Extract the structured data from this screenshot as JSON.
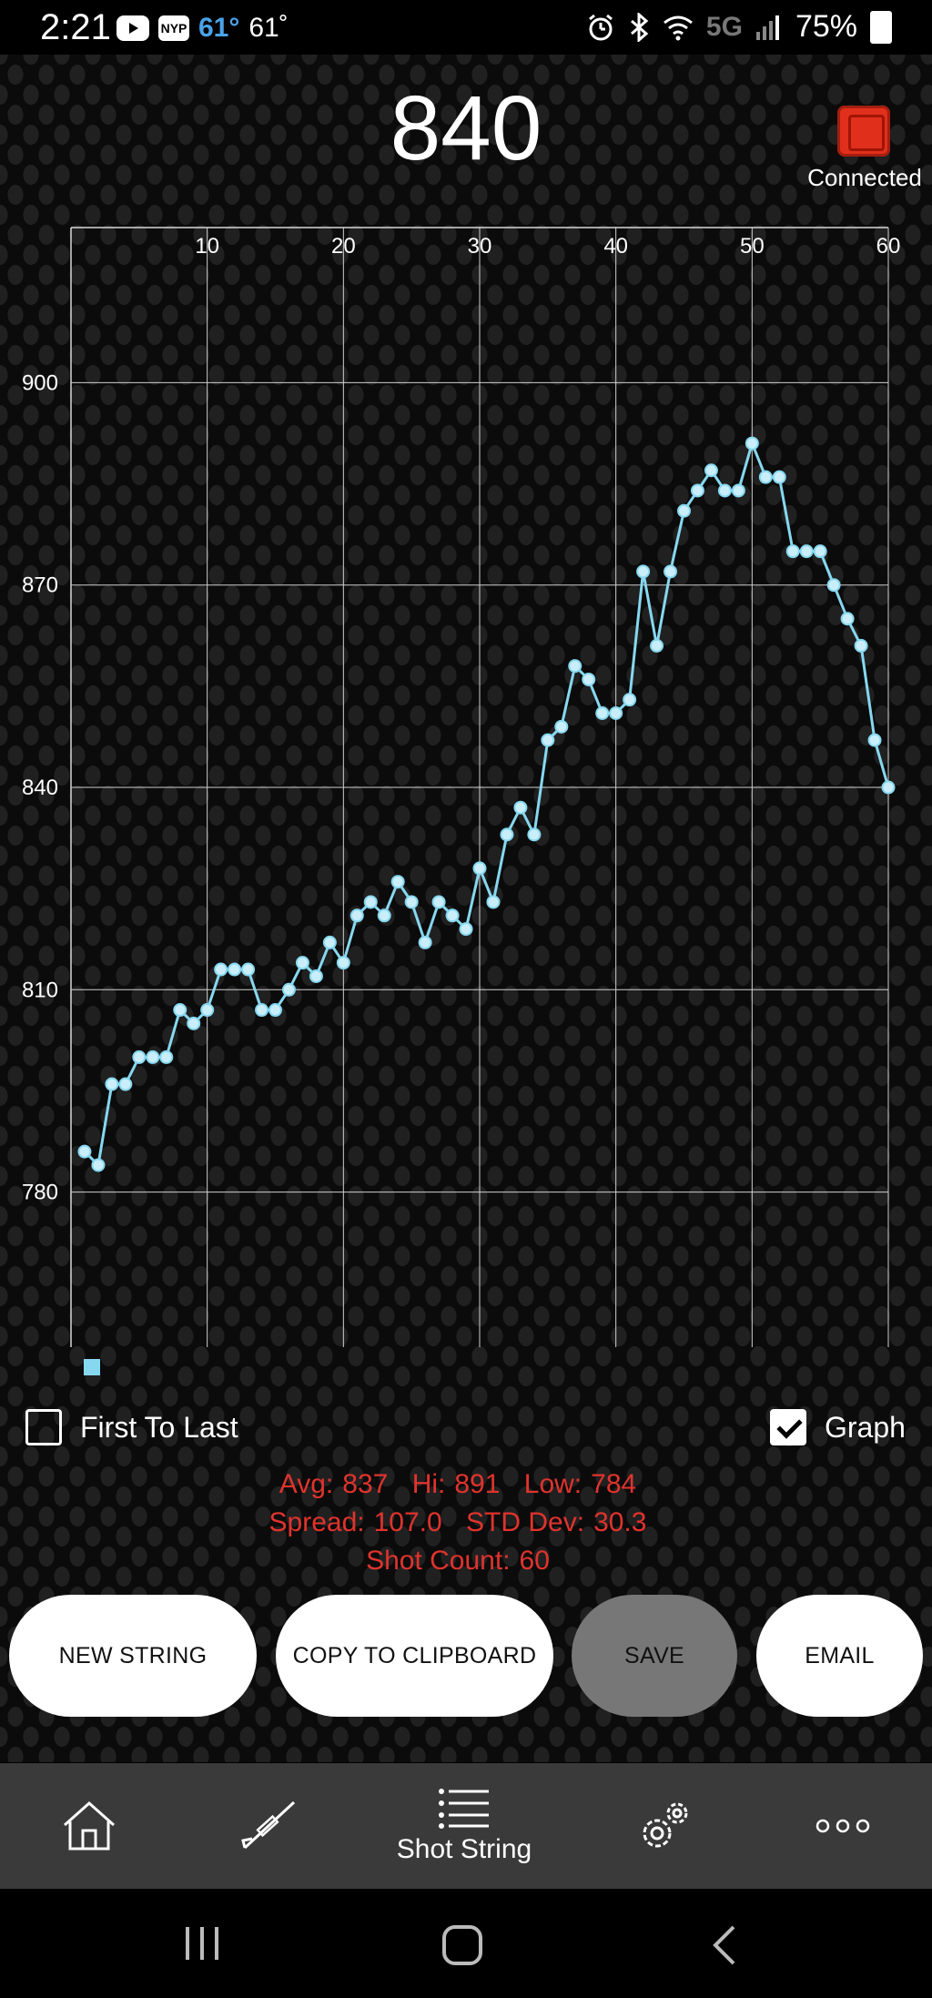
{
  "status_bar": {
    "time": "2:21",
    "temp_primary": "61°",
    "temp_secondary": "61˚",
    "network": "5G",
    "battery": "75%",
    "nyp_label": "NYP"
  },
  "header": {
    "current_velocity": "840",
    "device_status": "Connected"
  },
  "chart_data": {
    "type": "line",
    "x_ticks": [
      10,
      20,
      30,
      40,
      50,
      60
    ],
    "y_ticks": [
      780,
      810,
      840,
      870,
      900
    ],
    "xlim": [
      0,
      60
    ],
    "ylim": [
      757,
      923
    ],
    "grid": true,
    "series": [
      {
        "color": "#86d8f0",
        "x": [
          1,
          2,
          3,
          4,
          5,
          6,
          7,
          8,
          9,
          10,
          11,
          12,
          13,
          14,
          15,
          16,
          17,
          18,
          19,
          20,
          21,
          22,
          23,
          24,
          25,
          26,
          27,
          28,
          29,
          30,
          31,
          32,
          33,
          34,
          35,
          36,
          37,
          38,
          39,
          40,
          41,
          42,
          43,
          44,
          45,
          46,
          47,
          48,
          49,
          50,
          51,
          52,
          53,
          54,
          55,
          56,
          57,
          58,
          59,
          60
        ],
        "values": [
          786,
          784,
          796,
          796,
          800,
          800,
          800,
          807,
          805,
          807,
          813,
          813,
          813,
          807,
          807,
          810,
          814,
          812,
          817,
          814,
          821,
          823,
          821,
          826,
          823,
          817,
          823,
          821,
          819,
          828,
          823,
          833,
          837,
          833,
          847,
          849,
          858,
          856,
          851,
          851,
          853,
          872,
          861,
          872,
          881,
          884,
          887,
          884,
          884,
          891,
          886,
          886,
          875,
          875,
          875,
          870,
          865,
          861,
          847,
          840
        ]
      }
    ]
  },
  "controls": {
    "first_to_last_label": "First To Last",
    "first_to_last_checked": false,
    "graph_label": "Graph",
    "graph_checked": true
  },
  "stats": {
    "avg_label": "Avg:",
    "avg": "837",
    "hi_label": "Hi:",
    "hi": "891",
    "low_label": "Low:",
    "low": "784",
    "spread_label": "Spread:",
    "spread": "107.0",
    "std_label": "STD Dev:",
    "std": "30.3",
    "count_label": "Shot Count:",
    "count": "60"
  },
  "buttons": {
    "new_string": "NEW STRING",
    "copy": "COPY TO CLIPBOARD",
    "save": "SAVE",
    "email": "EMAIL"
  },
  "bottom_nav": {
    "active_label": "Shot String",
    "items": [
      "home-icon",
      "rifle-icon",
      "list-icon",
      "settings-icon",
      "more-icon"
    ]
  }
}
